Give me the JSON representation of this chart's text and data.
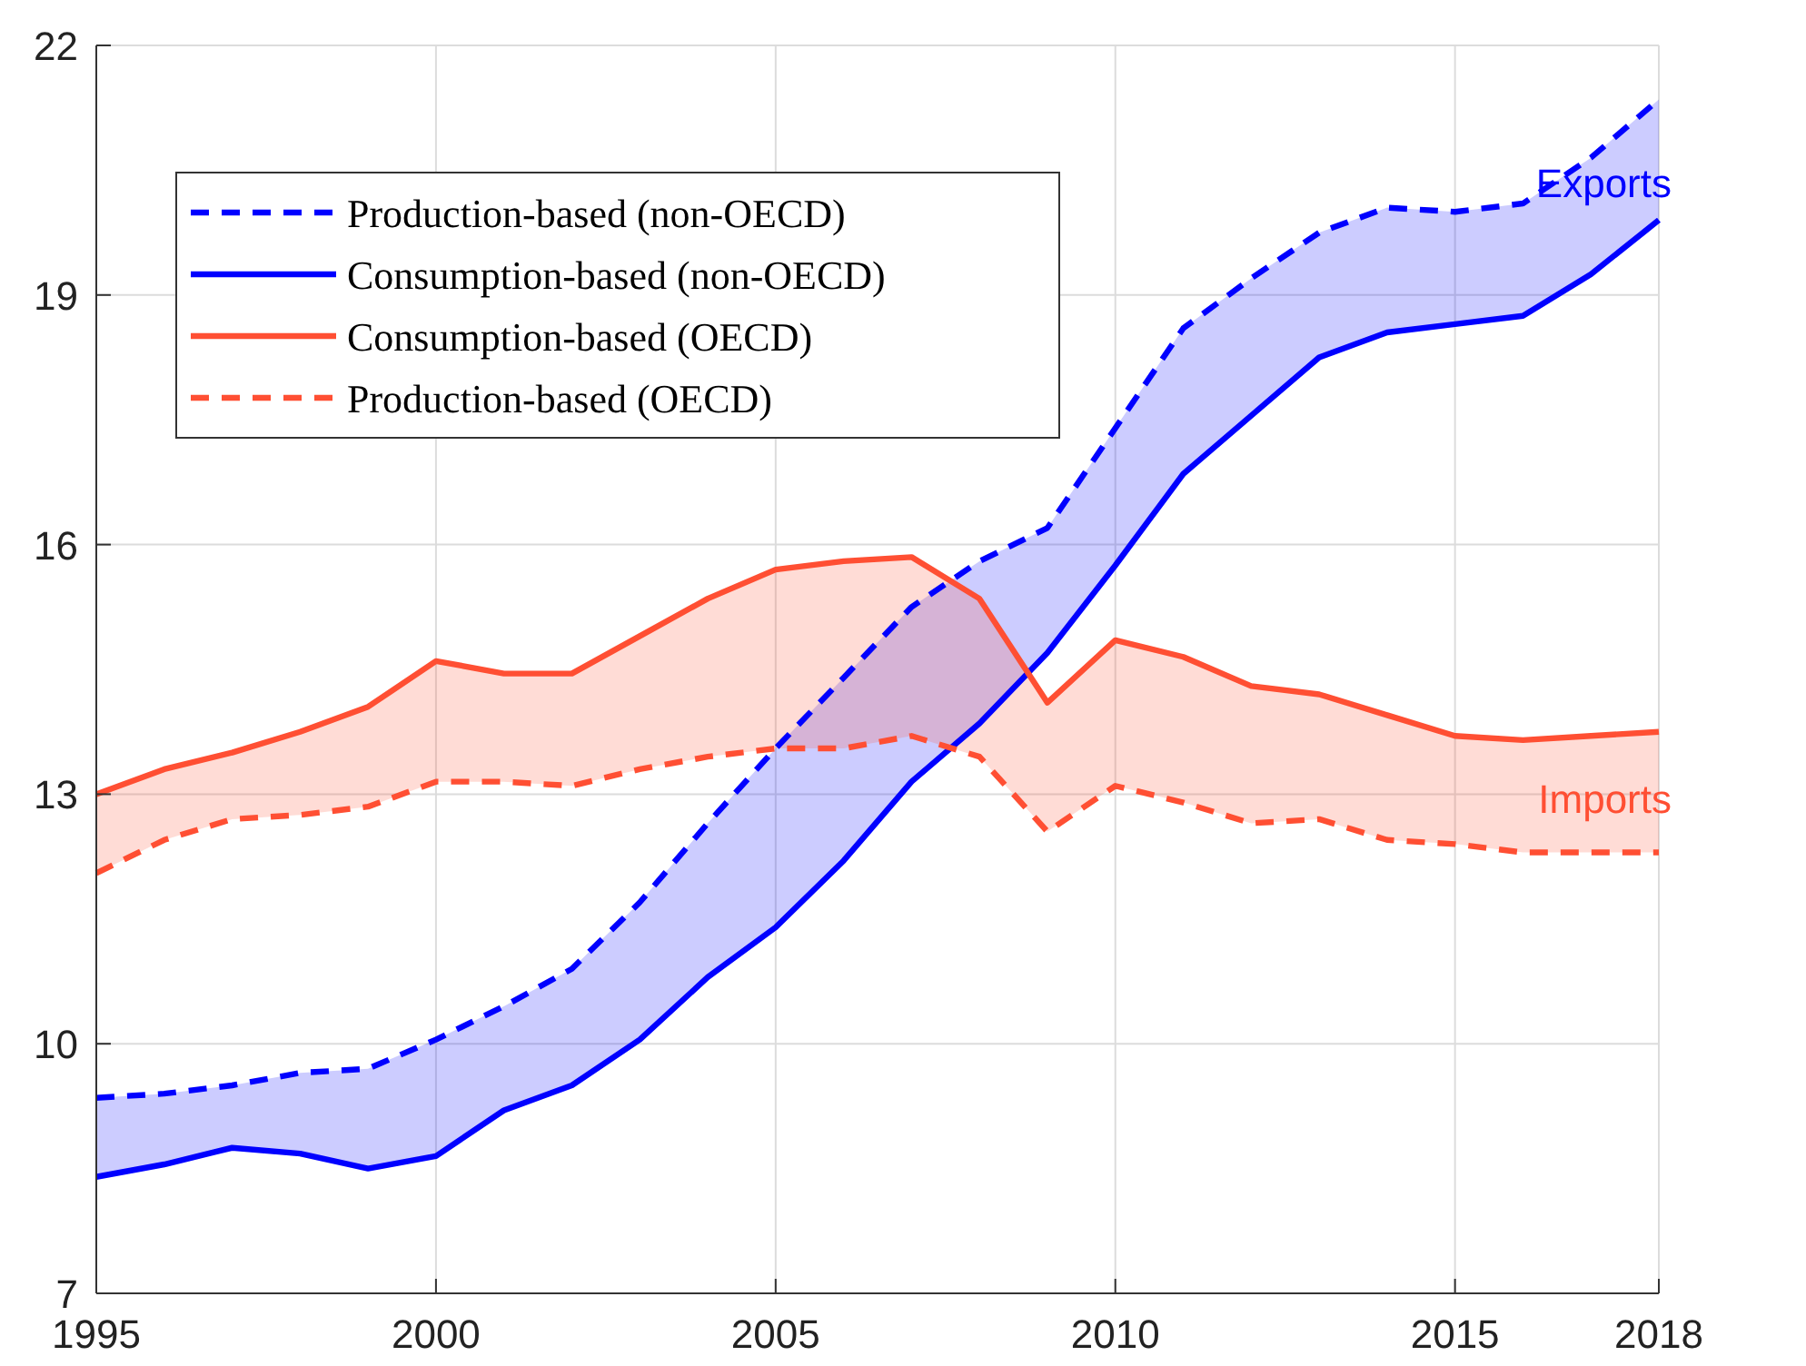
{
  "chart_data": {
    "type": "line",
    "x": [
      1995,
      1996,
      1997,
      1998,
      1999,
      2000,
      2001,
      2002,
      2003,
      2004,
      2005,
      2006,
      2007,
      2008,
      2009,
      2010,
      2011,
      2012,
      2013,
      2014,
      2015,
      2016,
      2017,
      2018
    ],
    "xlim": [
      1995,
      2018
    ],
    "xticks": [
      1995,
      2000,
      2005,
      2010,
      2015,
      2018
    ],
    "ylim": [
      7,
      22
    ],
    "yticks": [
      7,
      10,
      13,
      16,
      19,
      22
    ],
    "grid": true,
    "legend": "top left",
    "series": [
      {
        "name": "Production-based (non-OECD)",
        "color": "#0000ff",
        "line_style": "dashed",
        "values": [
          9.35,
          9.4,
          9.5,
          9.65,
          9.7,
          10.05,
          10.45,
          10.9,
          11.7,
          12.65,
          13.55,
          14.4,
          15.25,
          15.8,
          16.2,
          17.4,
          18.6,
          19.2,
          19.75,
          20.05,
          20.0,
          20.1,
          20.65,
          21.35
        ]
      },
      {
        "name": "Consumption-based (non-OECD)",
        "color": "#0000ff",
        "line_style": "solid",
        "values": [
          8.4,
          8.55,
          8.75,
          8.68,
          8.5,
          8.65,
          9.2,
          9.5,
          10.05,
          10.8,
          11.4,
          12.2,
          13.15,
          13.85,
          14.7,
          15.75,
          16.85,
          17.55,
          18.25,
          18.55,
          18.65,
          18.75,
          19.25,
          19.9
        ],
        "lower": [
          8.4,
          8.55,
          8.75,
          8.68,
          8.5,
          8.65,
          9.2,
          9.5,
          10.05,
          10.8,
          11.4,
          12.2,
          13.15,
          13.85,
          14.7,
          15.75,
          16.85,
          17.55,
          18.25,
          18.55,
          18.65,
          18.75,
          19.25,
          19.9
        ],
        "upper": [
          9.35,
          9.4,
          9.5,
          9.65,
          9.7,
          10.05,
          10.45,
          10.9,
          11.7,
          12.65,
          13.55,
          14.4,
          15.25,
          15.8,
          16.2,
          17.4,
          18.6,
          19.2,
          19.75,
          20.05,
          20.0,
          20.1,
          20.65,
          21.35
        ]
      },
      {
        "name": "Consumption-based (OECD)",
        "color": "#ff4f33",
        "line_style": "solid",
        "values": [
          13.0,
          13.3,
          13.5,
          13.75,
          14.05,
          14.6,
          14.45,
          14.45,
          14.9,
          15.35,
          15.7,
          15.8,
          15.85,
          15.35,
          14.1,
          14.85,
          14.65,
          14.3,
          14.2,
          13.95,
          13.7,
          13.65,
          13.7,
          13.75
        ],
        "lower": [
          12.05,
          12.45,
          12.7,
          12.75,
          12.85,
          13.15,
          13.15,
          13.1,
          13.3,
          13.45,
          13.55,
          13.55,
          13.7,
          13.45,
          12.55,
          13.1,
          12.9,
          12.65,
          12.7,
          12.45,
          12.4,
          12.3,
          12.3,
          12.3
        ],
        "upper": [
          13.0,
          13.3,
          13.5,
          13.75,
          14.05,
          14.6,
          14.45,
          14.45,
          14.9,
          15.35,
          15.7,
          15.8,
          15.85,
          15.35,
          14.1,
          14.85,
          14.65,
          14.3,
          14.2,
          13.95,
          13.7,
          13.65,
          13.7,
          13.75
        ]
      },
      {
        "name": "Production-based (OECD)",
        "color": "#ff4f33",
        "line_style": "dashed",
        "values": [
          12.05,
          12.45,
          12.7,
          12.75,
          12.85,
          13.15,
          13.15,
          13.1,
          13.3,
          13.45,
          13.55,
          13.55,
          13.7,
          13.45,
          12.55,
          13.1,
          12.9,
          12.65,
          12.7,
          12.45,
          12.4,
          12.3,
          12.3,
          12.3
        ]
      }
    ],
    "annotations": [
      {
        "text": "Exports",
        "x": 2018,
        "y": 20.35
      },
      {
        "text": "Imports",
        "x": 2018,
        "y": 12.95
      }
    ]
  }
}
